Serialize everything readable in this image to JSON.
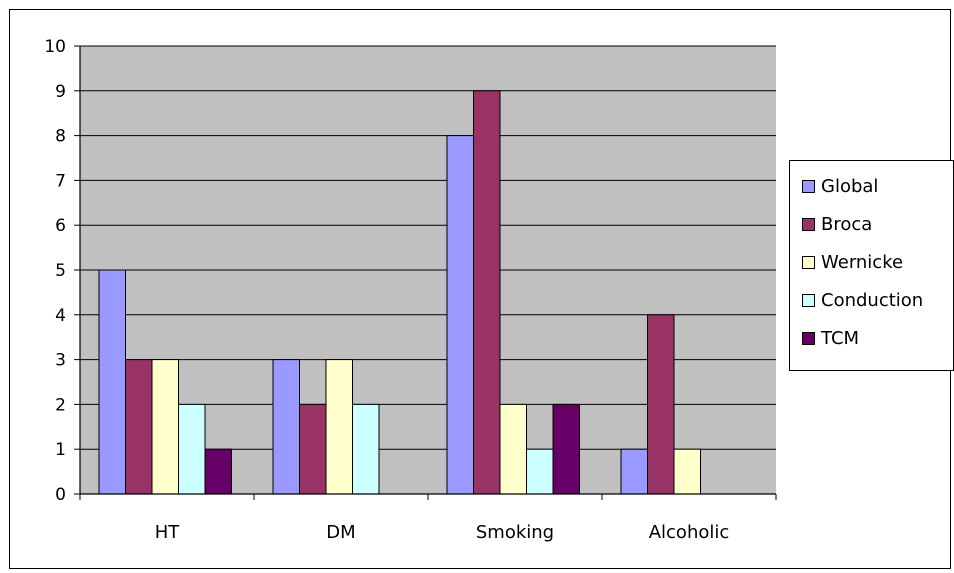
{
  "chart_data": {
    "type": "bar",
    "categories": [
      "HT",
      "DM",
      "Smoking",
      "Alcoholic"
    ],
    "series": [
      {
        "name": "Global",
        "color": "#9999ff",
        "values": [
          5,
          3,
          8,
          1
        ]
      },
      {
        "name": "Broca",
        "color": "#993366",
        "values": [
          3,
          2,
          9,
          4
        ]
      },
      {
        "name": "Wernicke",
        "color": "#ffffcc",
        "values": [
          3,
          3,
          2,
          1
        ]
      },
      {
        "name": "Conduction",
        "color": "#ccffff",
        "values": [
          2,
          2,
          1,
          0
        ]
      },
      {
        "name": "TCM",
        "color": "#660066",
        "values": [
          1,
          0,
          2,
          0
        ]
      }
    ],
    "ylim": [
      0,
      10
    ],
    "yticks": [
      "0",
      "1",
      "2",
      "3",
      "4",
      "5",
      "6",
      "7",
      "8",
      "9",
      "10"
    ],
    "grid": true,
    "plot_background": "#c0c0c0",
    "legend_position": "right"
  }
}
